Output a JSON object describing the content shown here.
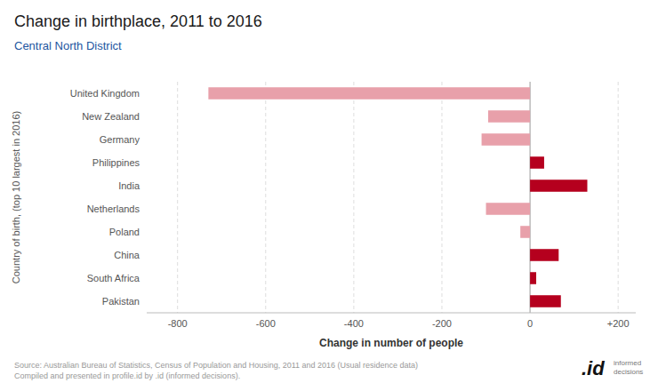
{
  "chart_data": {
    "type": "bar",
    "orientation": "horizontal",
    "title": "Change in birthplace, 2011 to 2016",
    "subtitle": "Central North District",
    "xlabel": "Change in number of people",
    "ylabel": "Country of birth, (top 10 largest in 2016)",
    "categories": [
      "United Kingdom",
      "New Zealand",
      "Germany",
      "Philippines",
      "India",
      "Netherlands",
      "Poland",
      "China",
      "South Africa",
      "Pakistan"
    ],
    "values": [
      -730,
      -95,
      -110,
      32,
      130,
      -100,
      -22,
      65,
      14,
      70
    ],
    "colors": [
      "#e8a0aa",
      "#e8a0aa",
      "#e8a0aa",
      "#b5001e",
      "#b5001e",
      "#e8a0aa",
      "#e8a0aa",
      "#b5001e",
      "#b5001e",
      "#b5001e"
    ],
    "xlim": [
      -870,
      240
    ],
    "xticks": [
      -800,
      -600,
      -400,
      -200,
      0,
      {
        "value": 200,
        "label": "+200"
      }
    ],
    "grid": true,
    "annotations": [
      "Source: Australian Bureau of Statistics, Census of Population and Housing, 2011 and 2016 (Usual residence data)\nCompiled and presented in profile.id by .id (informed decisions).",
      ".id",
      "informed\ndecisions"
    ]
  }
}
